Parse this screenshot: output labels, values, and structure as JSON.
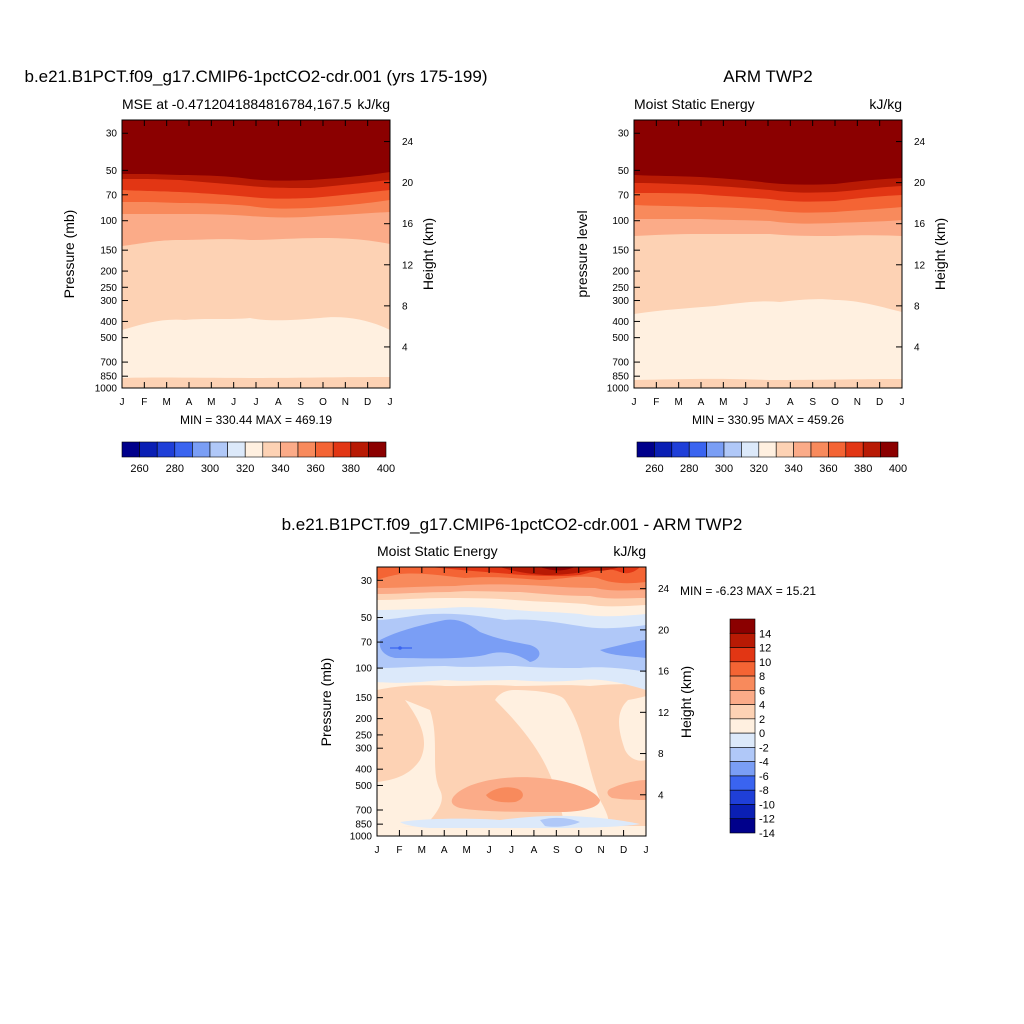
{
  "months": [
    "J",
    "F",
    "M",
    "A",
    "M",
    "J",
    "J",
    "A",
    "S",
    "O",
    "N",
    "D",
    "J"
  ],
  "pressure_ticks": [
    "30",
    "50",
    "70",
    "100",
    "150",
    "200",
    "250",
    "300",
    "400",
    "500",
    "700",
    "850",
    "1000"
  ],
  "height_ticks": [
    "24",
    "20",
    "16",
    "12",
    "8",
    "4"
  ],
  "panel1": {
    "main_title": "b.e21.B1PCT.f09_g17.CMIP6-1pctCO2-cdr.001 (yrs 175-199)",
    "left_string": "MSE at -0.4712041884816784,167.5",
    "units": "kJ/kg",
    "ylabel": "Pressure (mb)",
    "ylabel_right": "Height (km)",
    "minmax": "MIN = 330.44  MAX = 469.19"
  },
  "panel2": {
    "main_title": "ARM TWP2",
    "left_string": "Moist Static Energy",
    "units": "kJ/kg",
    "ylabel": "pressure level",
    "ylabel_right": "Height (km)",
    "minmax": "MIN = 330.95  MAX = 459.26"
  },
  "panel3": {
    "main_title": "b.e21.B1PCT.f09_g17.CMIP6-1pctCO2-cdr.001 - ARM TWP2",
    "left_string": "Moist Static Energy",
    "units": "kJ/kg",
    "ylabel": "Pressure (mb)",
    "ylabel_right": "Height (km)",
    "minmax": "MIN =  -6.23  MAX =  15.21"
  },
  "colorbar_abs": {
    "labels": [
      "260",
      "280",
      "300",
      "320",
      "340",
      "360",
      "380",
      "400"
    ],
    "colors": [
      "#00008b",
      "#0a1fb4",
      "#1f3fd8",
      "#3a64f0",
      "#7a9ef5",
      "#b0c8f8",
      "#dce9fa",
      "#fff0e0",
      "#fdd2b4",
      "#fbab88",
      "#f88a5c",
      "#f46434",
      "#e23614",
      "#b81a04",
      "#8b0000"
    ]
  },
  "colorbar_diff": {
    "labels": [
      "14",
      "12",
      "10",
      "8",
      "6",
      "4",
      "2",
      "0",
      "-2",
      "-4",
      "-6",
      "-8",
      "-10",
      "-12",
      "-14"
    ],
    "colors": [
      "#8b0000",
      "#b81a04",
      "#e23614",
      "#f46434",
      "#f88a5c",
      "#fbab88",
      "#fdd2b4",
      "#fff0e0",
      "#dce9fa",
      "#b0c8f8",
      "#7a9ef5",
      "#3a64f0",
      "#1f3fd8",
      "#0a1fb4",
      "#00008b"
    ]
  },
  "chart_data": [
    {
      "type": "heatmap",
      "title": "b.e21.B1PCT.f09_g17.CMIP6-1pctCO2-cdr.001 (yrs 175-199)",
      "variable": "MSE at -0.4712041884816784,167.5",
      "units": "kJ/kg",
      "x": [
        "J",
        "F",
        "M",
        "A",
        "M",
        "J",
        "J",
        "A",
        "S",
        "O",
        "N",
        "D",
        "J"
      ],
      "ylabel": "Pressure (mb)",
      "ylabel_right": "Height (km)",
      "min": 330.44,
      "max": 469.19,
      "bands_top_to_bottom": [
        {
          "level_range": "above ~55 mb",
          "value": 400
        },
        {
          "level_range": "~55-90 mb",
          "value": "360-395"
        },
        {
          "level_range": "~90-140 mb",
          "value": 355
        },
        {
          "level_range": "~140-400 mb",
          "value": 345
        },
        {
          "level_range": "~400-880 mb",
          "value": 335
        },
        {
          "level_range": "~880-1000 mb",
          "value": 345
        }
      ]
    },
    {
      "type": "heatmap",
      "title": "ARM TWP2",
      "variable": "Moist Static Energy",
      "units": "kJ/kg",
      "x": [
        "J",
        "F",
        "M",
        "A",
        "M",
        "J",
        "J",
        "A",
        "S",
        "O",
        "N",
        "D",
        "J"
      ],
      "ylabel": "pressure level",
      "ylabel_right": "Height (km)",
      "min": 330.95,
      "max": 459.26,
      "bands_top_to_bottom": [
        {
          "level_range": "above ~55 mb",
          "value": 400
        },
        {
          "level_range": "~55-120 mb",
          "value": "355-395"
        },
        {
          "level_range": "~120-330 mb",
          "value": 345
        },
        {
          "level_range": "~330-880 mb",
          "value": 335
        },
        {
          "level_range": "~880-1000 mb",
          "value": 345
        }
      ]
    },
    {
      "type": "heatmap",
      "title": "b.e21.B1PCT.f09_g17.CMIP6-1pctCO2-cdr.001 - ARM TWP2",
      "variable": "Moist Static Energy",
      "units": "kJ/kg",
      "x": [
        "J",
        "F",
        "M",
        "A",
        "M",
        "J",
        "J",
        "A",
        "S",
        "O",
        "N",
        "D",
        "J"
      ],
      "ylabel": "Pressure (mb)",
      "ylabel_right": "Height (km)",
      "min": -6.23,
      "max": 15.21,
      "bands_top_to_bottom": [
        {
          "level_range": "~30 mb",
          "value": 12
        },
        {
          "level_range": "~35-45 mb",
          "value": 5
        },
        {
          "level_range": "~50-60 mb",
          "value": -1
        },
        {
          "level_range": "~60-100 mb",
          "value": -4
        },
        {
          "level_range": "~120-900 mb",
          "value": 2
        },
        {
          "level_range": "~500 mb (Jun-Jul)",
          "value": 7
        },
        {
          "level_range": "~900 mb (Jul-Oct)",
          "value": -3
        }
      ]
    }
  ]
}
